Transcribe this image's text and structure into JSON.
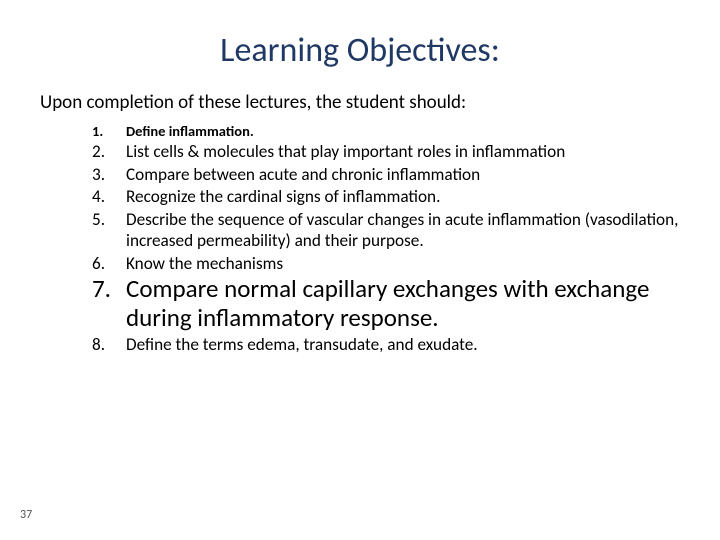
{
  "title": "Learning Objectives:",
  "intro": "Upon completion of these lectures, the student should:",
  "items": [
    {
      "num": "1.",
      "text": "Define inflammation.",
      "size": "fs-small",
      "bold": true
    },
    {
      "num": "2.",
      "text": "List cells  & molecules that play important roles in inflammation",
      "size": "fs-med",
      "bold": false
    },
    {
      "num": "3.",
      "text": "Compare between acute and chronic inflammation",
      "size": "fs-med",
      "bold": false
    },
    {
      "num": "4.",
      "text": "Recognize the cardinal signs of inflammation.",
      "size": "fs-med",
      "bold": false
    },
    {
      "num": "5.",
      "text": "Describe the sequence of vascular changes in acute inflammation (vasodilation, increased permeability) and their purpose.",
      "size": "fs-med",
      "bold": false
    },
    {
      "num": "6.",
      "text": " Know the mechanisms",
      "size": "fs-med",
      "bold": false
    },
    {
      "num": "7.",
      "text": "Compare normal capillary exchanges with exchange during inflammatory response.",
      "size": "fs-big",
      "bold": false
    },
    {
      "num": "8.",
      "text": "Define the terms edema, transudate, and exudate.",
      "size": "fs-med",
      "bold": false
    }
  ],
  "page_number": "37",
  "colors": {
    "title": "#1f3864",
    "text": "#000000",
    "background": "#ffffff"
  }
}
